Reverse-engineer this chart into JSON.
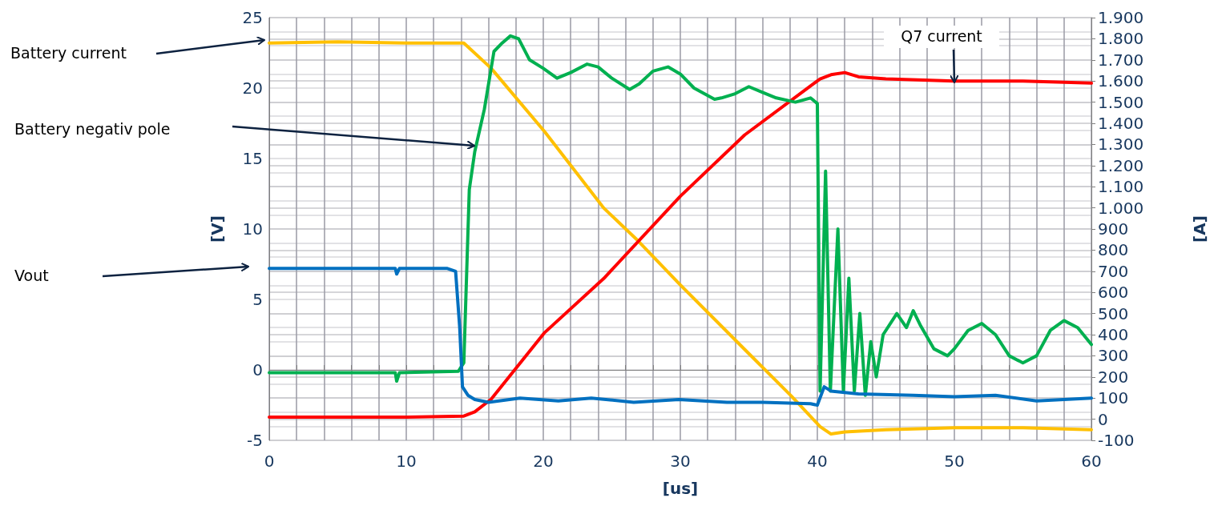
{
  "chart_data": {
    "type": "line",
    "xlabel": "[us]",
    "ylabel": "[V]",
    "y2label": "[A]",
    "xlim": [
      0,
      60
    ],
    "xticks": [
      0,
      {
        "value": 2,
        "label": null
      },
      {
        "value": 4,
        "label": null
      },
      {
        "value": 6,
        "label": null
      },
      {
        "value": 8,
        "label": null
      },
      10,
      {
        "value": 12,
        "label": null
      },
      {
        "value": 14,
        "label": null
      },
      {
        "value": 16,
        "label": null
      },
      {
        "value": 18,
        "label": null
      },
      20,
      {
        "value": 22,
        "label": null
      },
      {
        "value": 24,
        "label": null
      },
      {
        "value": 26,
        "label": null
      },
      {
        "value": 28,
        "label": null
      },
      30,
      {
        "value": 32,
        "label": null
      },
      {
        "value": 34,
        "label": null
      },
      {
        "value": 36,
        "label": null
      },
      {
        "value": 38,
        "label": null
      },
      40,
      {
        "value": 42,
        "label": null
      },
      {
        "value": 44,
        "label": null
      },
      {
        "value": 46,
        "label": null
      },
      {
        "value": 48,
        "label": null
      },
      50,
      {
        "value": 52,
        "label": null
      },
      {
        "value": 54,
        "label": null
      },
      {
        "value": 56,
        "label": null
      },
      {
        "value": 58,
        "label": null
      },
      60
    ],
    "ylim": [
      -5,
      25
    ],
    "yticks": [
      -5,
      {
        "value": -4,
        "label": null
      },
      {
        "value": -3,
        "label": null
      },
      {
        "value": -2,
        "label": null
      },
      {
        "value": -1,
        "label": null
      },
      0,
      {
        "value": 1,
        "label": null
      },
      {
        "value": 2,
        "label": null
      },
      {
        "value": 3,
        "label": null
      },
      {
        "value": 4,
        "label": null
      },
      5,
      {
        "value": 6,
        "label": null
      },
      {
        "value": 7,
        "label": null
      },
      {
        "value": 8,
        "label": null
      },
      {
        "value": 9,
        "label": null
      },
      10,
      {
        "value": 11,
        "label": null
      },
      {
        "value": 12,
        "label": null
      },
      {
        "value": 13,
        "label": null
      },
      {
        "value": 14,
        "label": null
      },
      15,
      {
        "value": 16,
        "label": null
      },
      {
        "value": 17,
        "label": null
      },
      {
        "value": 18,
        "label": null
      },
      {
        "value": 19,
        "label": null
      },
      20,
      {
        "value": 21,
        "label": null
      },
      {
        "value": 22,
        "label": null
      },
      {
        "value": 23,
        "label": null
      },
      {
        "value": 24,
        "label": null
      },
      25
    ],
    "y2lim": [
      -100,
      1900
    ],
    "y2ticks": [
      -100,
      0,
      100,
      200,
      300,
      400,
      500,
      600,
      700,
      800,
      900,
      {
        "value": 1000,
        "label": "1.000"
      },
      {
        "value": 1100,
        "label": "1.100"
      },
      {
        "value": 1200,
        "label": "1.200"
      },
      {
        "value": 1300,
        "label": "1.300"
      },
      {
        "value": 1400,
        "label": "1.400"
      },
      {
        "value": 1500,
        "label": "1.500"
      },
      {
        "value": 1600,
        "label": "1.600"
      },
      {
        "value": 1700,
        "label": "1.700"
      },
      {
        "value": 1800,
        "label": "1.800"
      },
      {
        "value": 1900,
        "label": "1.900"
      }
    ],
    "grid": true,
    "marker": "none",
    "line_style": "solid",
    "annotations": [
      "Battery current",
      "Battery negativ pole",
      "Vout",
      {
        "text": "Q7 current",
        "x": 50,
        "y": 20.4
      }
    ],
    "series": [
      {
        "color": "#ffc000",
        "axis": "y2",
        "x": [
          0,
          5,
          10,
          13,
          14.2,
          16.2,
          20.1,
          24.4,
          26.9,
          30,
          34.7,
          38.1,
          40.2,
          41,
          42,
          45,
          50,
          55,
          60
        ],
        "values": [
          1780,
          1785,
          1780,
          1780,
          1780,
          1660,
          1360,
          1000,
          845,
          635,
          330,
          110,
          -35,
          -70,
          -60,
          -50,
          -40,
          -40,
          -50
        ]
      },
      {
        "color": "#ff0000",
        "axis": "y2",
        "x": [
          0,
          5,
          10,
          14.2,
          15,
          16.2,
          20.1,
          24.4,
          30,
          34.7,
          40.2,
          41,
          42,
          43,
          45,
          50,
          55,
          60
        ],
        "values": [
          10,
          10,
          10,
          15,
          35,
          95,
          410,
          665,
          1055,
          1345,
          1610,
          1630,
          1640,
          1620,
          1610,
          1600,
          1600,
          1590
        ]
      },
      {
        "color": "#00b050",
        "x": [
          0,
          5,
          9.2,
          9.3,
          9.5,
          13.8,
          14.2,
          14.6,
          15,
          15.7,
          16.4,
          17,
          17.6,
          18.2,
          19,
          20,
          21,
          22,
          23.2,
          24,
          25,
          26.3,
          27,
          28,
          29.1,
          30,
          31,
          32.5,
          33,
          34,
          35,
          36,
          37,
          38.4,
          39.5,
          40,
          40.2,
          40.6,
          40.95,
          41.5,
          41.9,
          42.3,
          42.7,
          43.1,
          43.5,
          43.9,
          44.3,
          44.8,
          45.8,
          46.5,
          47,
          47.5,
          48.5,
          49.5,
          50,
          51,
          52,
          53,
          54,
          55,
          56,
          57,
          58,
          59,
          60
        ],
        "values": [
          -0.2,
          -0.2,
          -0.2,
          -0.8,
          -0.2,
          -0.1,
          0.5,
          12.8,
          15.5,
          18.5,
          22.6,
          23.2,
          23.7,
          23.5,
          22,
          21.4,
          20.7,
          21.1,
          21.7,
          21.5,
          20.7,
          19.9,
          20.3,
          21.2,
          21.5,
          21,
          20,
          19.2,
          19.3,
          19.6,
          20.1,
          19.7,
          19.3,
          19,
          19.3,
          18.9,
          -1.5,
          14.1,
          -1.5,
          10,
          -1.5,
          6.5,
          -1.5,
          4,
          -1.8,
          2,
          -0.5,
          2.5,
          4,
          3,
          4.2,
          3.2,
          1.5,
          1,
          1.5,
          2.8,
          3.3,
          2.5,
          1,
          0.5,
          1,
          2.8,
          3.5,
          3,
          1.8
        ]
      },
      {
        "color": "#0070c0",
        "x": [
          0,
          5,
          9.2,
          9.3,
          9.5,
          13,
          13.6,
          13.9,
          14.1,
          14.5,
          15,
          16,
          18.3,
          21.1,
          23.5,
          26.6,
          29.9,
          33.4,
          36,
          39.5,
          40,
          40.5,
          41,
          43,
          47,
          50,
          53,
          56,
          60
        ],
        "values": [
          7.2,
          7.2,
          7.2,
          6.8,
          7.2,
          7.2,
          7.0,
          3,
          -1.2,
          -1.8,
          -2.1,
          -2.3,
          -2.0,
          -2.2,
          -2.0,
          -2.3,
          -2.1,
          -2.3,
          -2.3,
          -2.4,
          -2.5,
          -1.2,
          -1.5,
          -1.7,
          -1.8,
          -1.9,
          -1.8,
          -2.2,
          -2.0
        ]
      }
    ]
  }
}
